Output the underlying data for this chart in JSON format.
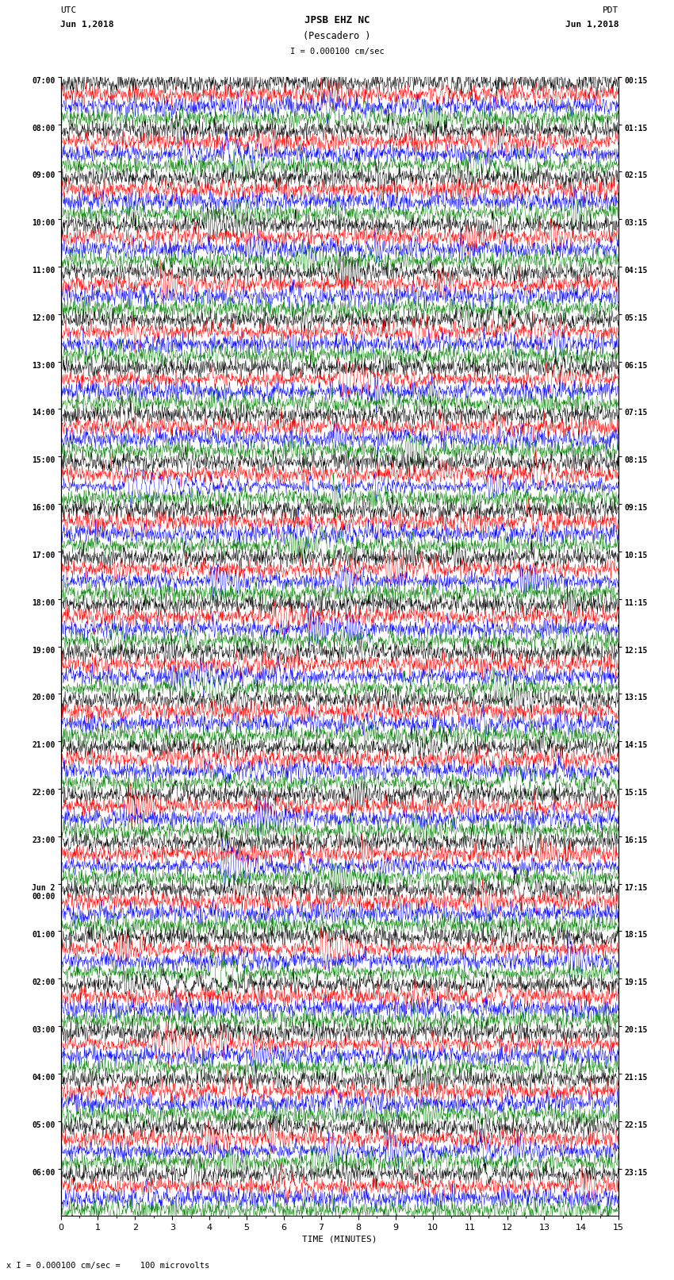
{
  "title_line1": "JPSB EHZ NC",
  "title_line2": "(Pescadero )",
  "scale_label": "I = 0.000100 cm/sec",
  "utc_label1": "UTC",
  "utc_label2": "Jun 1,2018",
  "pdt_label1": "PDT",
  "pdt_label2": "Jun 1,2018",
  "bottom_label": "x I = 0.000100 cm/sec =    100 microvolts",
  "xlabel": "TIME (MINUTES)",
  "left_times": [
    "07:00",
    "08:00",
    "09:00",
    "10:00",
    "11:00",
    "12:00",
    "13:00",
    "14:00",
    "15:00",
    "16:00",
    "17:00",
    "18:00",
    "19:00",
    "20:00",
    "21:00",
    "22:00",
    "23:00",
    "Jun 2\n00:00",
    "01:00",
    "02:00",
    "03:00",
    "04:00",
    "05:00",
    "06:00"
  ],
  "right_times": [
    "00:15",
    "01:15",
    "02:15",
    "03:15",
    "04:15",
    "05:15",
    "06:15",
    "07:15",
    "08:15",
    "09:15",
    "10:15",
    "11:15",
    "12:15",
    "13:15",
    "14:15",
    "15:15",
    "16:15",
    "17:15",
    "18:15",
    "19:15",
    "20:15",
    "21:15",
    "22:15",
    "23:15"
  ],
  "n_rows": 24,
  "traces_per_row": 4,
  "colors": [
    "black",
    "red",
    "blue",
    "green"
  ],
  "minutes_per_row": 15,
  "background_color": "white",
  "samples_per_minute": 100,
  "fig_width": 8.5,
  "fig_height": 16.13,
  "dpi": 100
}
